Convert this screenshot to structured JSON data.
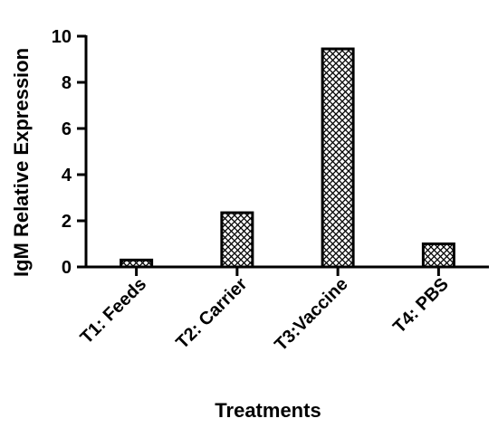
{
  "chart_data": {
    "type": "bar",
    "categories": [
      "T1: Feeds",
      "T2: Carrier",
      "T3:Vaccine",
      "T4: PBS"
    ],
    "values": [
      0.3,
      2.35,
      9.45,
      1.0
    ],
    "title": "",
    "xlabel": "Treatments",
    "ylabel": "IgM Relative Expression",
    "ylim": [
      0,
      10
    ],
    "yticks": [
      0,
      2,
      4,
      6,
      8,
      10
    ],
    "grid": false,
    "legend": "none",
    "bar_pattern": "crosshatch",
    "bar_color": "#000000"
  }
}
